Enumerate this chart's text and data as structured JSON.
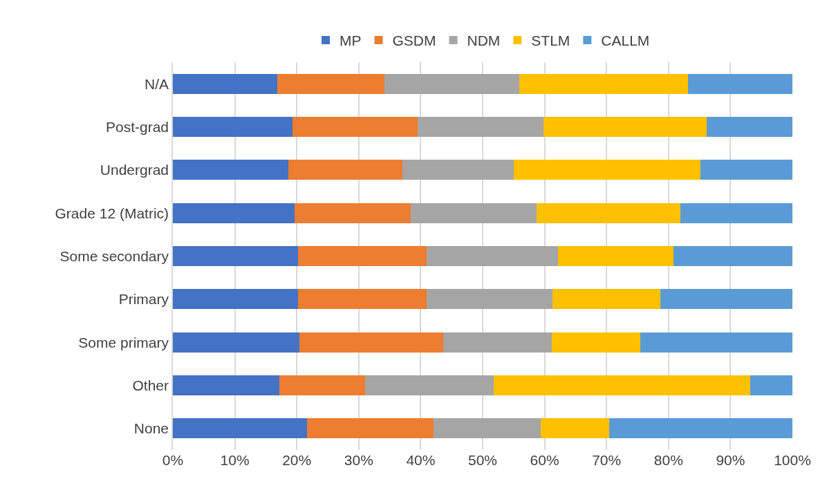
{
  "chart_data": {
    "type": "bar",
    "orientation": "horizontal",
    "stacked": true,
    "categories": [
      "N/A",
      "Post-grad",
      "Undergrad",
      "Grade 12 (Matric)",
      "Some secondary",
      "Primary",
      "Some primary",
      "Other",
      "None"
    ],
    "series": [
      {
        "name": "MP",
        "color": "#4472c4",
        "values": [
          16.9,
          19.3,
          18.6,
          19.6,
          20.2,
          20.2,
          20.4,
          17.2,
          21.6
        ]
      },
      {
        "name": "GSDM",
        "color": "#ed7d31",
        "values": [
          17.2,
          20.2,
          18.4,
          18.8,
          20.8,
          20.8,
          23.2,
          13.8,
          20.5
        ]
      },
      {
        "name": "NDM",
        "color": "#a5a5a5",
        "values": [
          21.8,
          20.3,
          18.0,
          20.3,
          21.2,
          20.3,
          17.6,
          20.8,
          17.3
        ]
      },
      {
        "name": "STLM",
        "color": "#ffc000",
        "values": [
          27.2,
          26.4,
          30.1,
          23.2,
          18.6,
          17.4,
          14.3,
          41.4,
          11.0
        ]
      },
      {
        "name": "CALLM",
        "color": "#5b9bd5",
        "values": [
          16.9,
          13.8,
          14.9,
          18.1,
          19.2,
          21.3,
          24.5,
          6.8,
          29.6
        ]
      }
    ],
    "xlim": [
      0,
      100
    ],
    "xticks": [
      {
        "value": 0,
        "label": "0%"
      },
      {
        "value": 10,
        "label": "10%"
      },
      {
        "value": 20,
        "label": "20%"
      },
      {
        "value": 30,
        "label": "30%"
      },
      {
        "value": 40,
        "label": "40%"
      },
      {
        "value": 50,
        "label": "50%"
      },
      {
        "value": 60,
        "label": "60%"
      },
      {
        "value": 70,
        "label": "70%"
      },
      {
        "value": 80,
        "label": "80%"
      },
      {
        "value": 90,
        "label": "90%"
      },
      {
        "value": 100,
        "label": "100%"
      }
    ],
    "grid": "x",
    "legend": "top"
  }
}
